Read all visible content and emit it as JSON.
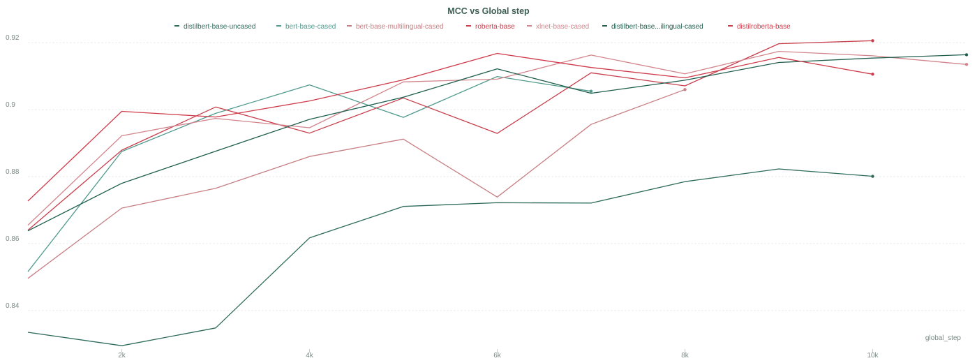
{
  "chart_data": {
    "type": "line",
    "title": "MCC vs Global step",
    "xlabel": "global_step",
    "ylabel": "",
    "xlim": [
      1000,
      11000
    ],
    "ylim": [
      0.8285,
      0.9265
    ],
    "x_ticks": [
      2000,
      4000,
      6000,
      8000,
      10000
    ],
    "x_tick_labels": [
      "2k",
      "4k",
      "6k",
      "8k",
      "10k"
    ],
    "y_ticks": [
      0.84,
      0.86,
      0.88,
      0.9,
      0.92
    ],
    "y_tick_labels": [
      "0.84",
      "0.86",
      "0.88",
      "0.9",
      "0.92"
    ],
    "grid": true,
    "legend_placement": "top",
    "x": [
      1000,
      2000,
      3000,
      4000,
      5000,
      6000,
      7000,
      8000,
      9000,
      10000,
      11000
    ],
    "series": [
      {
        "name": "distilbert-base-uncased",
        "color": "#2d6a5a",
        "values": [
          0.8335,
          0.8295,
          0.8348,
          0.8617,
          0.8711,
          0.8722,
          0.8721,
          0.8785,
          0.8823,
          0.8801,
          null
        ]
      },
      {
        "name": "bert-base-cased",
        "color": "#4f9a8c",
        "values": [
          0.8516,
          0.8875,
          0.8989,
          0.9074,
          0.8977,
          0.9099,
          0.9055,
          null,
          null,
          null,
          null
        ]
      },
      {
        "name": "bert-base-multilingual-cased",
        "color": "#c77e82",
        "values": [
          0.8496,
          0.8706,
          0.8765,
          0.886,
          0.8912,
          0.8739,
          0.8956,
          0.906,
          null,
          null,
          null
        ]
      },
      {
        "name": "roberta-base",
        "color": "#c73e4c",
        "values": [
          0.864,
          0.8879,
          0.9008,
          0.893,
          0.9035,
          0.8929,
          0.911,
          0.9071,
          0.9197,
          0.9206,
          null
        ]
      },
      {
        "name": "xlnet-base-cased",
        "color": "#d2858d",
        "values": [
          0.8655,
          0.8922,
          0.8974,
          0.8946,
          0.9083,
          0.9091,
          0.9163,
          0.9107,
          0.9174,
          0.9161,
          0.9135
        ]
      },
      {
        "name": "distilbert-base...ilingual-cased",
        "color": "#1f5e4d",
        "values": [
          0.8638,
          0.878,
          0.8876,
          0.8971,
          0.9037,
          0.9122,
          0.9049,
          0.9088,
          0.9141,
          0.9154,
          0.9164
        ]
      },
      {
        "name": "distilroberta-base",
        "color": "#cf3a49",
        "values": [
          0.8727,
          0.8995,
          0.8978,
          0.9026,
          0.9089,
          0.9168,
          0.9126,
          0.9095,
          0.9156,
          0.9106,
          null
        ]
      }
    ]
  }
}
